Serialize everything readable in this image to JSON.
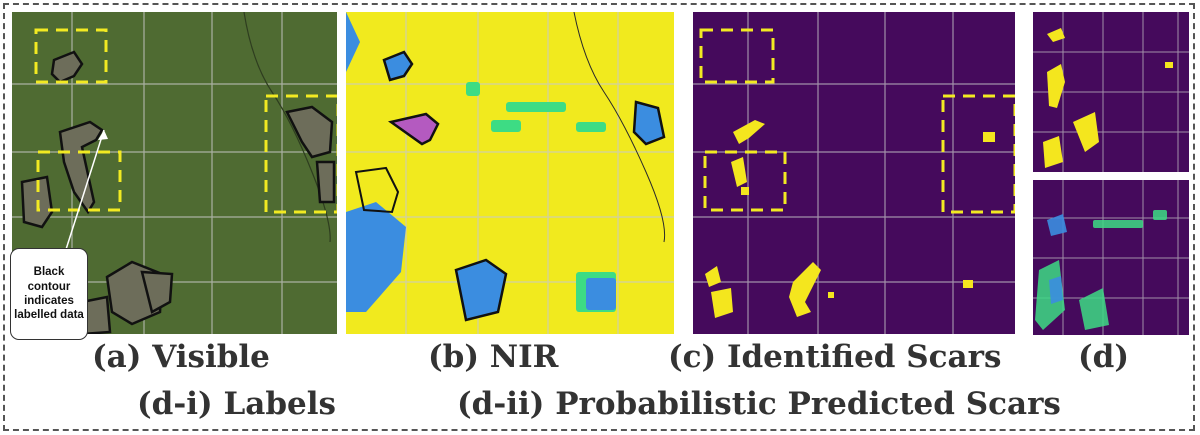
{
  "captions": {
    "a": "(a) Visible",
    "b": "(b) NIR",
    "c": "(c) Identified Scars",
    "d": "(d)",
    "d_i": "(d-i) Labels",
    "d_ii": "(d-ii) Probabilistic Predicted Scars"
  },
  "callout": {
    "text": "Black contour indicates labelled data"
  },
  "colors": {
    "visible_bg": "#4f6b32",
    "nir_bg": "#f1ea1e",
    "scars_bg": "#450a5c",
    "scar_yellow": "#f4e61e",
    "highlight_dash": "#f2ea22",
    "grid": "#d8d8d8"
  }
}
